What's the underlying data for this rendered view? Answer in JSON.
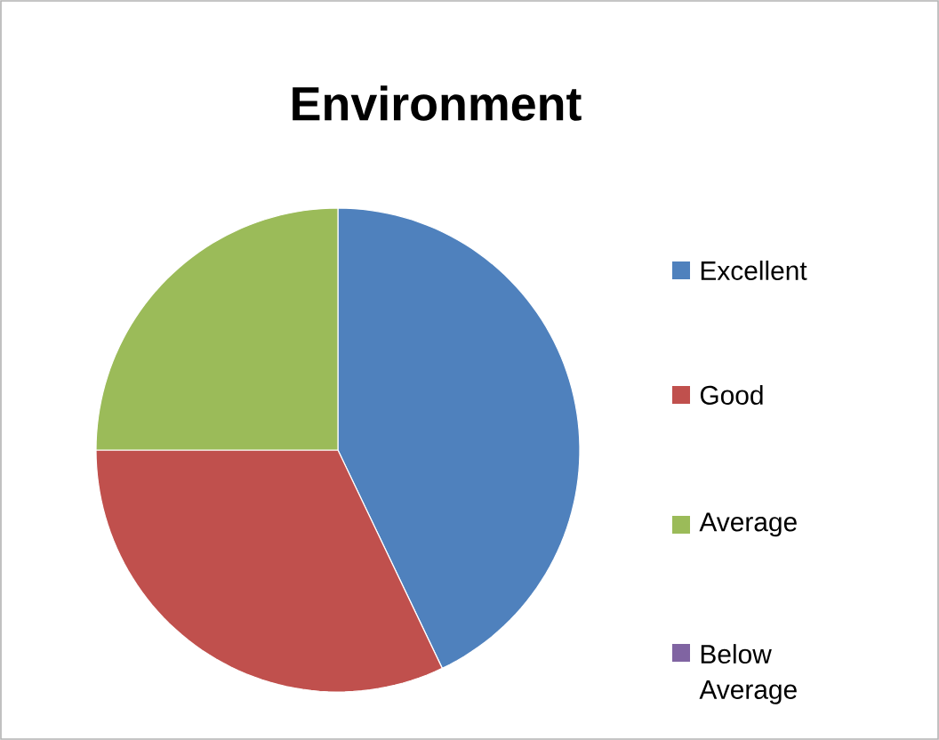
{
  "chart_data": {
    "type": "pie",
    "title": "Environment",
    "categories": [
      "Excellent",
      "Good",
      "Average",
      "Below Average"
    ],
    "values": [
      42.9,
      32.1,
      25,
      0
    ],
    "colors": [
      "#4f81bd",
      "#c0504d",
      "#9bbb59",
      "#8064a2"
    ],
    "legend": "right"
  }
}
